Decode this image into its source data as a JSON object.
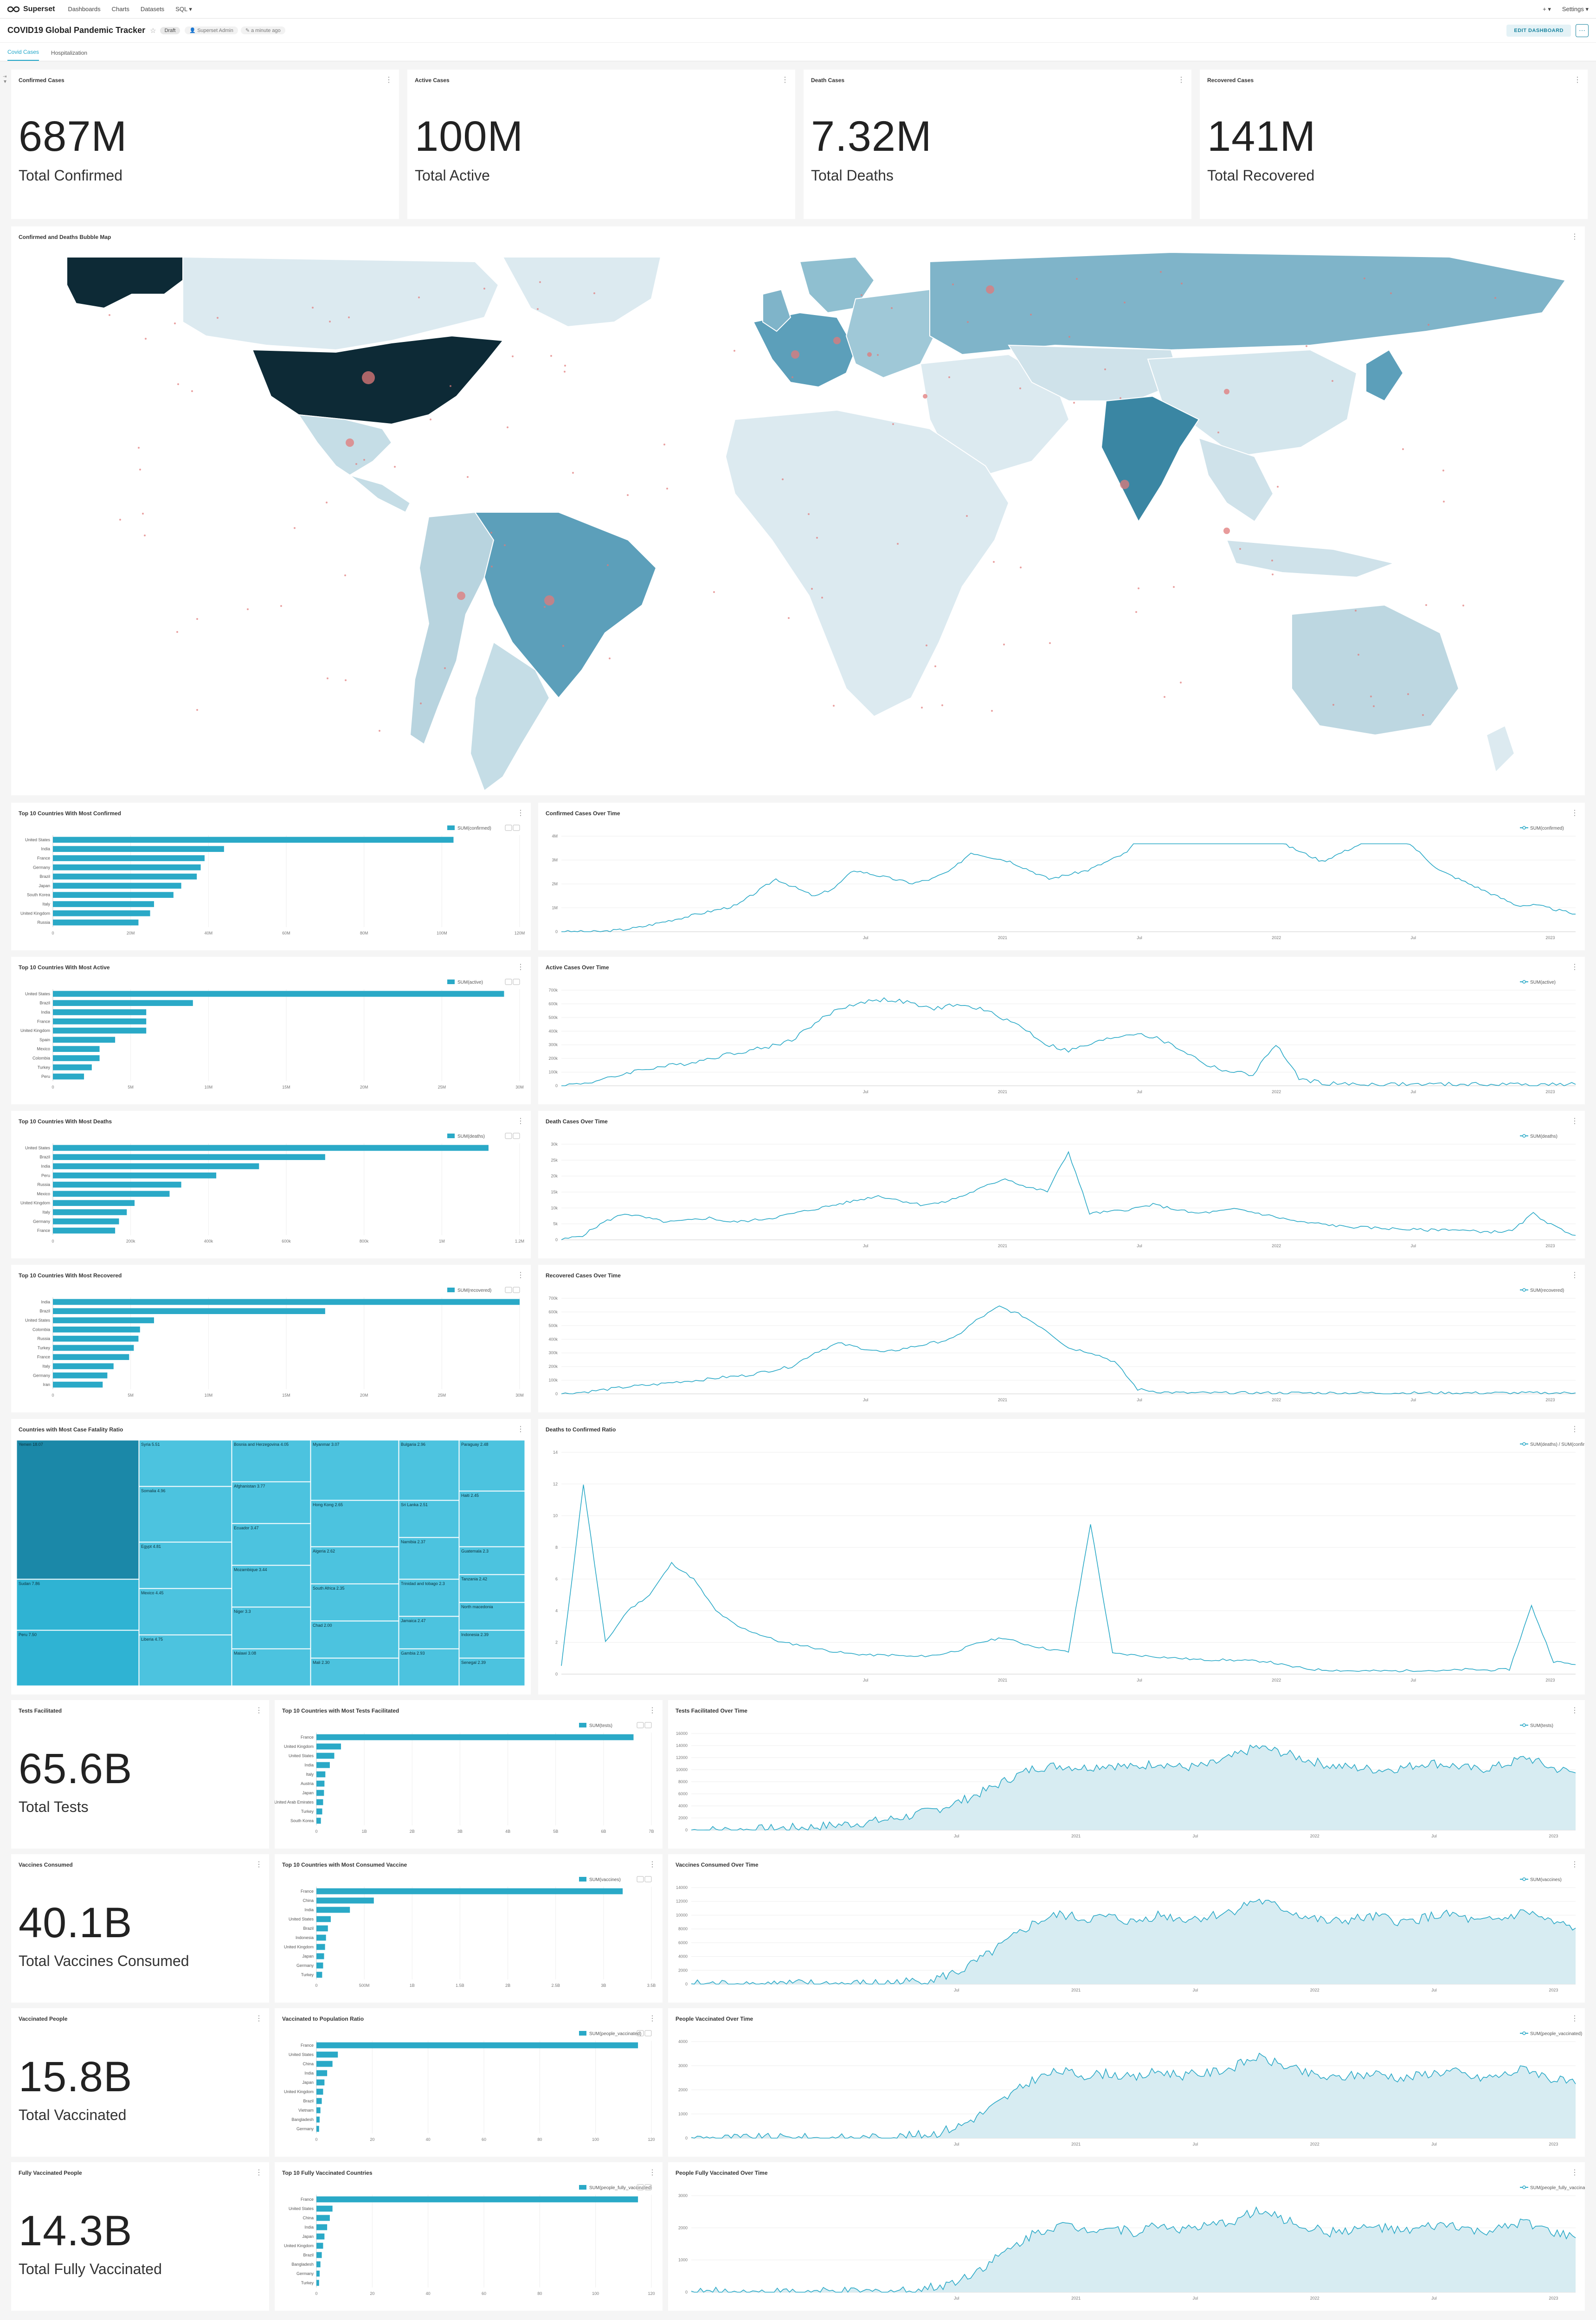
{
  "app": {
    "brand": "Superset",
    "nav": [
      "Dashboards",
      "Charts",
      "Datasets",
      "SQL"
    ],
    "right": [
      "+",
      "Settings"
    ]
  },
  "dashboard": {
    "title": "COVID19 Global Pandemic Tracker",
    "status": "Draft",
    "owner": "Superset Admin",
    "modified": "a minute ago",
    "edit_label": "EDIT DASHBOARD",
    "more_icon": "ellipsis-icon"
  },
  "tabs": [
    "Covid Cases",
    "Hospitalization"
  ],
  "colors": {
    "accent": "#20a7c9",
    "bar": "#2aa9c7",
    "map_dark": "#0d2a36",
    "map_mid": "#5c9fba",
    "map_light": "#dceaf0",
    "bubble": "#e07a7a"
  },
  "kpis": [
    {
      "title": "Confirmed Cases",
      "value": "687M",
      "label": "Total Confirmed"
    },
    {
      "title": "Active Cases",
      "value": "100M",
      "label": "Total Active"
    },
    {
      "title": "Death Cases",
      "value": "7.32M",
      "label": "Total Deaths"
    },
    {
      "title": "Recovered Cases",
      "value": "141M",
      "label": "Total Recovered"
    }
  ],
  "map": {
    "title": "Confirmed and Deaths Bubble Map"
  },
  "bar_charts": [
    {
      "title": "Top 10 Countries With Most Confirmed",
      "legend": "SUM(confirmed)",
      "categories": [
        "United States",
        "India",
        "France",
        "Germany",
        "Brazil",
        "Japan",
        "South Korea",
        "Italy",
        "United Kingdom",
        "Russia"
      ],
      "values": [
        103,
        44,
        39,
        38,
        37,
        33,
        31,
        26,
        25,
        22
      ],
      "ticks": [
        "0",
        "20M",
        "40M",
        "60M",
        "80M",
        "100M",
        "120M"
      ],
      "max": 120
    },
    {
      "title": "Top 10 Countries With Most Active",
      "legend": "SUM(active)",
      "categories": [
        "United States",
        "Brazil",
        "India",
        "France",
        "United Kingdom",
        "Spain",
        "Mexico",
        "Colombia",
        "Turkey",
        "Peru"
      ],
      "values": [
        29,
        9,
        6,
        6,
        6,
        4,
        3,
        3,
        2.5,
        2
      ],
      "ticks": [
        "0",
        "5M",
        "10M",
        "15M",
        "20M",
        "25M",
        "30M"
      ],
      "max": 30
    },
    {
      "title": "Top 10 Countries With Most Deaths",
      "legend": "SUM(deaths)",
      "categories": [
        "United States",
        "Brazil",
        "India",
        "Peru",
        "Russia",
        "Mexico",
        "United Kingdom",
        "Italy",
        "Germany",
        "France"
      ],
      "values": [
        1.12,
        0.7,
        0.53,
        0.42,
        0.33,
        0.3,
        0.21,
        0.19,
        0.17,
        0.16
      ],
      "ticks": [
        "0",
        "200k",
        "400k",
        "600k",
        "800k",
        "1M",
        "1.2M"
      ],
      "max": 1.2
    },
    {
      "title": "Top 10 Countries With Most Recovered",
      "legend": "SUM(recovered)",
      "categories": [
        "India",
        "Brazil",
        "United States",
        "Colombia",
        "Russia",
        "Turkey",
        "France",
        "Italy",
        "Germany",
        "Iran"
      ],
      "values": [
        30,
        17.5,
        6.5,
        5.6,
        5.5,
        5.2,
        4.9,
        3.9,
        3.5,
        3.2
      ],
      "ticks": [
        "0",
        "5M",
        "10M",
        "15M",
        "20M",
        "25M",
        "30M"
      ],
      "max": 30
    }
  ],
  "line_charts": [
    {
      "title": "Confirmed Cases Over Time",
      "legend": "SUM(confirmed)",
      "yticks": [
        "0",
        "1M",
        "2M",
        "3M",
        "4M"
      ],
      "xticks": [
        "Jul",
        "2021",
        "Jul",
        "2022",
        "Jul",
        "2023"
      ],
      "area": false,
      "series": [
        0,
        0,
        0,
        0.02,
        0.05,
        0.1,
        0.15,
        0.2,
        0.25,
        0.3,
        0.45,
        0.6,
        0.5,
        0.4,
        0.5,
        0.7,
        0.65,
        0.6,
        0.55,
        0.6,
        0.7,
        0.9,
        0.85,
        0.8,
        0.7,
        0.6,
        0.65,
        0.7,
        0.8,
        0.9,
        1.2,
        3.6,
        3.1,
        2.2,
        1.6,
        1.4,
        1.2,
        1.0,
        0.9,
        0.8,
        0.9,
        1.0,
        1.3,
        1.1,
        0.9,
        0.7,
        0.6,
        0.5,
        0.4,
        0.3,
        0.3,
        0.25,
        0.2
      ]
    },
    {
      "title": "Active Cases Over Time",
      "legend": "SUM(active)",
      "yticks": [
        "0",
        "100k",
        "200k",
        "300k",
        "400k",
        "500k",
        "600k",
        "700k"
      ],
      "xticks": [
        "Jul",
        "2021",
        "Jul",
        "2022",
        "Jul",
        "2023"
      ],
      "area": false,
      "series": [
        0,
        0.02,
        0.05,
        0.1,
        0.13,
        0.15,
        0.18,
        0.22,
        0.25,
        0.28,
        0.33,
        0.45,
        0.55,
        0.6,
        0.62,
        0.6,
        0.55,
        0.58,
        0.56,
        0.5,
        0.42,
        0.3,
        0.25,
        0.3,
        0.35,
        0.38,
        0.33,
        0.25,
        0.15,
        0.1,
        0.08,
        0.3,
        0.05,
        0.02,
        0.01,
        0.01,
        0.01,
        0.01,
        0.01,
        0.01,
        0.01,
        0.01,
        0.01,
        0.01,
        0.01
      ]
    },
    {
      "title": "Death Cases Over Time",
      "legend": "SUM(deaths)",
      "yticks": [
        "0",
        "5k",
        "10k",
        "15k",
        "20k",
        "25k",
        "30k"
      ],
      "xticks": [
        "Jul",
        "2021",
        "Jul",
        "2022",
        "Jul",
        "2023"
      ],
      "area": false,
      "series": [
        0,
        0.05,
        0.2,
        0.3,
        0.25,
        0.2,
        0.22,
        0.25,
        0.2,
        0.22,
        0.25,
        0.3,
        0.35,
        0.4,
        0.45,
        0.5,
        0.45,
        0.4,
        0.42,
        0.5,
        0.6,
        0.7,
        0.6,
        0.55,
        1.0,
        0.3,
        0.32,
        0.35,
        0.4,
        0.35,
        0.3,
        0.32,
        0.35,
        0.3,
        0.25,
        0.2,
        0.18,
        0.15,
        0.14,
        0.13,
        0.12,
        0.11,
        0.12,
        0.1,
        0.09,
        0.1,
        0.3,
        0.15,
        0.05
      ]
    },
    {
      "title": "Recovered Cases Over Time",
      "legend": "SUM(recovered)",
      "yticks": [
        "0",
        "100k",
        "200k",
        "300k",
        "400k",
        "500k",
        "600k",
        "700k"
      ],
      "xticks": [
        "Jul",
        "2021",
        "Jul",
        "2022",
        "Jul",
        "2023"
      ],
      "area": false,
      "series": [
        0,
        0.02,
        0.05,
        0.08,
        0.1,
        0.13,
        0.15,
        0.18,
        0.2,
        0.25,
        0.3,
        0.45,
        0.55,
        0.5,
        0.45,
        0.5,
        0.55,
        0.6,
        0.8,
        0.95,
        0.85,
        0.7,
        0.5,
        0.45,
        0.35,
        0.05,
        0.02,
        0.01,
        0.01,
        0.01,
        0.01,
        0.01,
        0.01,
        0.01,
        0.01,
        0.01,
        0.01,
        0.01,
        0.01,
        0.01,
        0.01,
        0.01,
        0.01,
        0.01,
        0.01
      ]
    }
  ],
  "treemap": {
    "title": "Countries with Most Case Fatality Ratio",
    "cells": [
      {
        "label": "Yemen 18.07",
        "v": 18.07
      },
      {
        "label": "Sudan 7.86",
        "v": 7.86
      },
      {
        "label": "Peru 7.50",
        "v": 7.5
      },
      {
        "label": "Syria 5.51",
        "v": 5.51
      },
      {
        "label": "Somalia 4.96",
        "v": 4.96
      },
      {
        "label": "Egypt 4.81",
        "v": 4.81
      },
      {
        "label": "Mexico 4.45",
        "v": 4.45
      },
      {
        "label": "Liberia 4.75",
        "v": 4.75
      },
      {
        "label": "Bosnia and Herzegovina 4.05",
        "v": 4.05
      },
      {
        "label": "Afghanistan 3.77",
        "v": 3.77
      },
      {
        "label": "Ecuador 3.47",
        "v": 3.47
      },
      {
        "label": "Mozambique 3.44",
        "v": 3.44
      },
      {
        "label": "Niger 3.3",
        "v": 3.3
      },
      {
        "label": "Malawi 3.08",
        "v": 3.08
      },
      {
        "label": "Myanmar 3.07",
        "v": 3.07
      },
      {
        "label": "Hong Kong 2.65",
        "v": 2.65
      },
      {
        "label": "Algeria 2.62",
        "v": 2.62
      },
      {
        "label": "South Africa 2.35",
        "v": 2.35
      },
      {
        "label": "Chad 2.00",
        "v": 2.0
      },
      {
        "label": "Mali 2.30",
        "v": 2.3
      },
      {
        "label": "Bulgaria 2.96",
        "v": 2.96
      },
      {
        "label": "Sri Lanka 2.51",
        "v": 2.51
      },
      {
        "label": "Namibia 2.37",
        "v": 2.37
      },
      {
        "label": "Trinidad and tobago 2.3",
        "v": 2.3
      },
      {
        "label": "Jamaica 2.47",
        "v": 2.47
      },
      {
        "label": "Gambia 2.93",
        "v": 2.93
      },
      {
        "label": "Paraguay 2.48",
        "v": 2.48
      },
      {
        "label": "Haiti 2.45",
        "v": 2.45
      },
      {
        "label": "Guatemala 2.3",
        "v": 2.3
      },
      {
        "label": "Tanzania 2.42",
        "v": 2.42
      },
      {
        "label": "North macedonia",
        "v": 2.9
      },
      {
        "label": "Indonesia 2.39",
        "v": 2.39
      },
      {
        "label": "Senegal 2.39",
        "v": 2.39
      },
      {
        "label": "Cambodia 2.3",
        "v": 2.3
      },
      {
        "label": "Tunisia 2.55",
        "v": 2.55
      },
      {
        "label": "Zimbabwe 2.17",
        "v": 2.17
      },
      {
        "label": "Hungary 2.09",
        "v": 2.09
      },
      {
        "label": "Zimbabwe 2.1",
        "v": 2.1
      }
    ]
  },
  "ratio_chart": {
    "title": "Deaths to Confirmed Ratio",
    "legend": "SUM(deaths) / SUM(confirmed) * 100",
    "yticks": [
      "0",
      "2",
      "4",
      "6",
      "8",
      "10",
      "12",
      "14"
    ],
    "xticks": [
      "Jul",
      "2021",
      "Jul",
      "2022",
      "Jul",
      "2023"
    ],
    "series": [
      0.5,
      12,
      2,
      4,
      5,
      7,
      6,
      4,
      3,
      2.5,
      2,
      1.8,
      1.5,
      1.3,
      1.2,
      1.2,
      1.1,
      1.2,
      1.5,
      2,
      2.3,
      1.9,
      1.6,
      1.4,
      9.5,
      1.3,
      1.2,
      1.1,
      1.0,
      0.9,
      0.9,
      0.85,
      0.8,
      0.5,
      0.3,
      0.25,
      0.2,
      0.2,
      0.2,
      0.25,
      0.2,
      0.3,
      0.25,
      0.3,
      4.3,
      0.8,
      0.6
    ]
  },
  "bottom_rows": [
    {
      "kpi": {
        "title": "Tests Facilitated",
        "value": "65.6B",
        "label": "Total Tests"
      },
      "bar": {
        "title": "Top 10 Countries with Most Tests Facilitated",
        "legend": "SUM(tests)",
        "categories": [
          "France",
          "United Kingdom",
          "United States",
          "India",
          "Italy",
          "Austria",
          "Japan",
          "United Arab Emirates",
          "Turkey",
          "South Korea"
        ],
        "values": [
          7.1,
          0.55,
          0.4,
          0.3,
          0.2,
          0.18,
          0.17,
          0.15,
          0.13,
          0.1
        ],
        "ticks": [
          "0",
          "1B",
          "2B",
          "3B",
          "4B",
          "5B",
          "6B",
          "7B"
        ],
        "max": 7.5
      },
      "line": {
        "title": "Tests Facilitated Over Time",
        "legend": "SUM(tests)",
        "yticks": [
          "0",
          "2000",
          "4000",
          "6000",
          "8000",
          "10000",
          "12000",
          "14000",
          "16000"
        ],
        "xticks": [
          "Jul",
          "2021",
          "Jul",
          "2022",
          "Jul",
          "2023"
        ]
      }
    },
    {
      "kpi": {
        "title": "Vaccines Consumed",
        "value": "40.1B",
        "label": "Total Vaccines Consumed"
      },
      "bar": {
        "title": "Top 10 Countries with Most Consumed Vaccine",
        "legend": "SUM(vaccines)",
        "categories": [
          "France",
          "China",
          "India",
          "United States",
          "Brazil",
          "Indonesia",
          "United Kingdom",
          "Japan",
          "Germany",
          "Turkey"
        ],
        "values": [
          3.2,
          0.6,
          0.35,
          0.15,
          0.12,
          0.1,
          0.09,
          0.08,
          0.07,
          0.06
        ],
        "ticks": [
          "0",
          "500M",
          "1B",
          "1.5B",
          "2B",
          "2.5B",
          "3B",
          "3.5B"
        ],
        "max": 3.5
      },
      "line": {
        "title": "Vaccines Consumed Over Time",
        "legend": "SUM(vaccines)",
        "yticks": [
          "0",
          "2000",
          "4000",
          "6000",
          "8000",
          "10000",
          "12000",
          "14000"
        ],
        "xticks": [
          "Jul",
          "2021",
          "Jul",
          "2022",
          "Jul",
          "2023"
        ]
      }
    },
    {
      "kpi": {
        "title": "Vaccinated People",
        "value": "15.8B",
        "label": "Total Vaccinated"
      },
      "bar": {
        "title": "Vaccinated to Population Ratio",
        "legend": "SUM(people_vaccinated)",
        "categories": [
          "France",
          "United States",
          "China",
          "India",
          "Japan",
          "United Kingdom",
          "Brazil",
          "Vietnam",
          "Bangladesh",
          "Germany"
        ],
        "values": [
          120,
          8,
          6,
          4,
          3,
          2.5,
          2,
          1.5,
          1.2,
          1
        ],
        "ticks": [
          "0",
          "20",
          "40",
          "60",
          "80",
          "100",
          "120"
        ],
        "max": 125
      },
      "line": {
        "title": "People Vaccinated Over Time",
        "legend": "SUM(people_vaccinated)",
        "yticks": [
          "0",
          "1000",
          "2000",
          "3000",
          "4000"
        ],
        "xticks": [
          "Jul",
          "2021",
          "Jul",
          "2022",
          "Jul",
          "2023"
        ]
      }
    },
    {
      "kpi": {
        "title": "Fully Vaccinated People",
        "value": "14.3B",
        "label": "Total Fully Vaccinated"
      },
      "bar": {
        "title": "Top 10 Fully Vaccinated Countries",
        "legend": "SUM(people_fully_vaccinated)",
        "categories": [
          "France",
          "United States",
          "China",
          "India",
          "Japan",
          "United Kingdom",
          "Brazil",
          "Bangladesh",
          "Germany",
          "Turkey"
        ],
        "values": [
          120,
          6,
          5,
          4,
          3,
          2.5,
          2,
          1.5,
          1.2,
          1
        ],
        "ticks": [
          "0",
          "20",
          "40",
          "60",
          "80",
          "100",
          "120"
        ],
        "max": 125
      },
      "line": {
        "title": "People Fully Vaccinated Over Time",
        "legend": "SUM(people_fully_vaccinated)",
        "yticks": [
          "0",
          "1000",
          "2000",
          "3000"
        ],
        "xticks": [
          "Jul",
          "2021",
          "Jul",
          "2022",
          "Jul",
          "2023"
        ]
      }
    }
  ]
}
